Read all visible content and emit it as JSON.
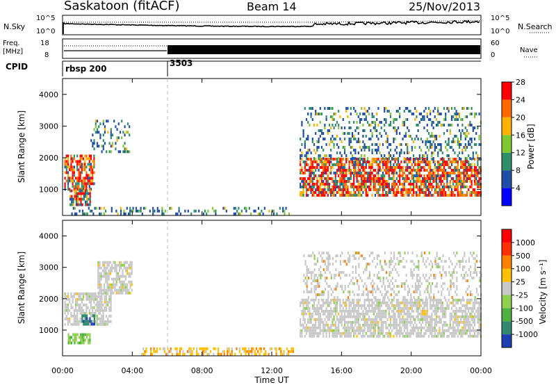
{
  "header": {
    "station": "Saskatoon (fitACF)",
    "beam": "Beam 14",
    "date": "25/Nov/2013"
  },
  "noise_panel": {
    "left_label": "N.Sky",
    "right_label": "N.Search",
    "left_ticks": [
      "10^5",
      "10^0"
    ],
    "right_ticks": [
      "10^5",
      "10^0"
    ]
  },
  "freq_panel": {
    "left_label_1": "Freq.",
    "left_label_2": "[MHz]",
    "left_ticks": [
      "18",
      "8"
    ],
    "right_label": "Nave",
    "right_ticks": [
      "60",
      "0"
    ]
  },
  "cpid": {
    "label": "CPID",
    "entries": [
      {
        "name": "rbsp 200",
        "start_hour": 0
      },
      {
        "name": "3503",
        "start_hour": 6.0
      }
    ]
  },
  "chart_data": [
    {
      "type": "heatmap",
      "name": "power",
      "ylabel": "Slant Range [km]",
      "colorbar_label": "Power [dB]",
      "ylim": [
        180,
        4500
      ],
      "yticks": [
        "1000",
        "2000",
        "3000",
        "4000"
      ],
      "xlim_hours": [
        0,
        24
      ],
      "colorbar_ticks": [
        "4",
        "8",
        "12",
        "16",
        "20",
        "24",
        "28"
      ],
      "colors": [
        "#0000ff",
        "#1f4fa7",
        "#2f8f6a",
        "#7fc832",
        "#ffb000",
        "#ff6a00",
        "#ff0000"
      ],
      "regions": [
        {
          "t": [
            0.1,
            1.8
          ],
          "r": [
            1000,
            2100
          ],
          "level": "high"
        },
        {
          "t": [
            0.4,
            1.6
          ],
          "r": [
            500,
            1000
          ],
          "level": "mixed"
        },
        {
          "t": [
            1.6,
            3.8
          ],
          "r": [
            2200,
            3200
          ],
          "level": "low"
        },
        {
          "t": [
            0.5,
            13.0
          ],
          "r": [
            200,
            450
          ],
          "level": "low"
        },
        {
          "t": [
            13.6,
            24.0
          ],
          "r": [
            800,
            2000
          ],
          "level": "high"
        },
        {
          "t": [
            13.6,
            24.0
          ],
          "r": [
            2000,
            3600
          ],
          "level": "low"
        }
      ]
    },
    {
      "type": "heatmap",
      "name": "velocity",
      "ylabel": "Slant Range [km]",
      "colorbar_label": "Velocity [m s⁻¹]",
      "ylim": [
        180,
        4500
      ],
      "yticks": [
        "1000",
        "2000",
        "3000",
        "4000"
      ],
      "xlim_hours": [
        0,
        24
      ],
      "colorbar_ticks": [
        "1000",
        "500",
        "100",
        "25",
        "-25",
        "-100",
        "-500",
        "-1000"
      ],
      "colors": [
        "#1f3fb0",
        "#2f8a70",
        "#4fb040",
        "#8fd04f",
        "#c8c8c8",
        "#ffc000",
        "#ff7f00",
        "#ff3000",
        "#ff0000"
      ],
      "regions": [
        {
          "t": [
            0.1,
            2.8
          ],
          "r": [
            1200,
            2200
          ],
          "level": "gray"
        },
        {
          "t": [
            0.3,
            1.6
          ],
          "r": [
            600,
            900
          ],
          "level": "green"
        },
        {
          "t": [
            1.0,
            1.8
          ],
          "r": [
            1200,
            1500
          ],
          "level": "teal"
        },
        {
          "t": [
            2.0,
            4.0
          ],
          "r": [
            2200,
            3200
          ],
          "level": "gray"
        },
        {
          "t": [
            4.5,
            13.2
          ],
          "r": [
            200,
            450
          ],
          "level": "orange"
        },
        {
          "t": [
            13.6,
            24.0
          ],
          "r": [
            800,
            2000
          ],
          "level": "gray"
        },
        {
          "t": [
            13.8,
            24.0
          ],
          "r": [
            2000,
            3500
          ],
          "level": "grayfaint"
        }
      ]
    }
  ],
  "xaxis": {
    "label": "Time UT",
    "ticks": [
      "00:00",
      "04:00",
      "08:00",
      "12:00",
      "16:00",
      "20:00",
      "00:00"
    ]
  }
}
